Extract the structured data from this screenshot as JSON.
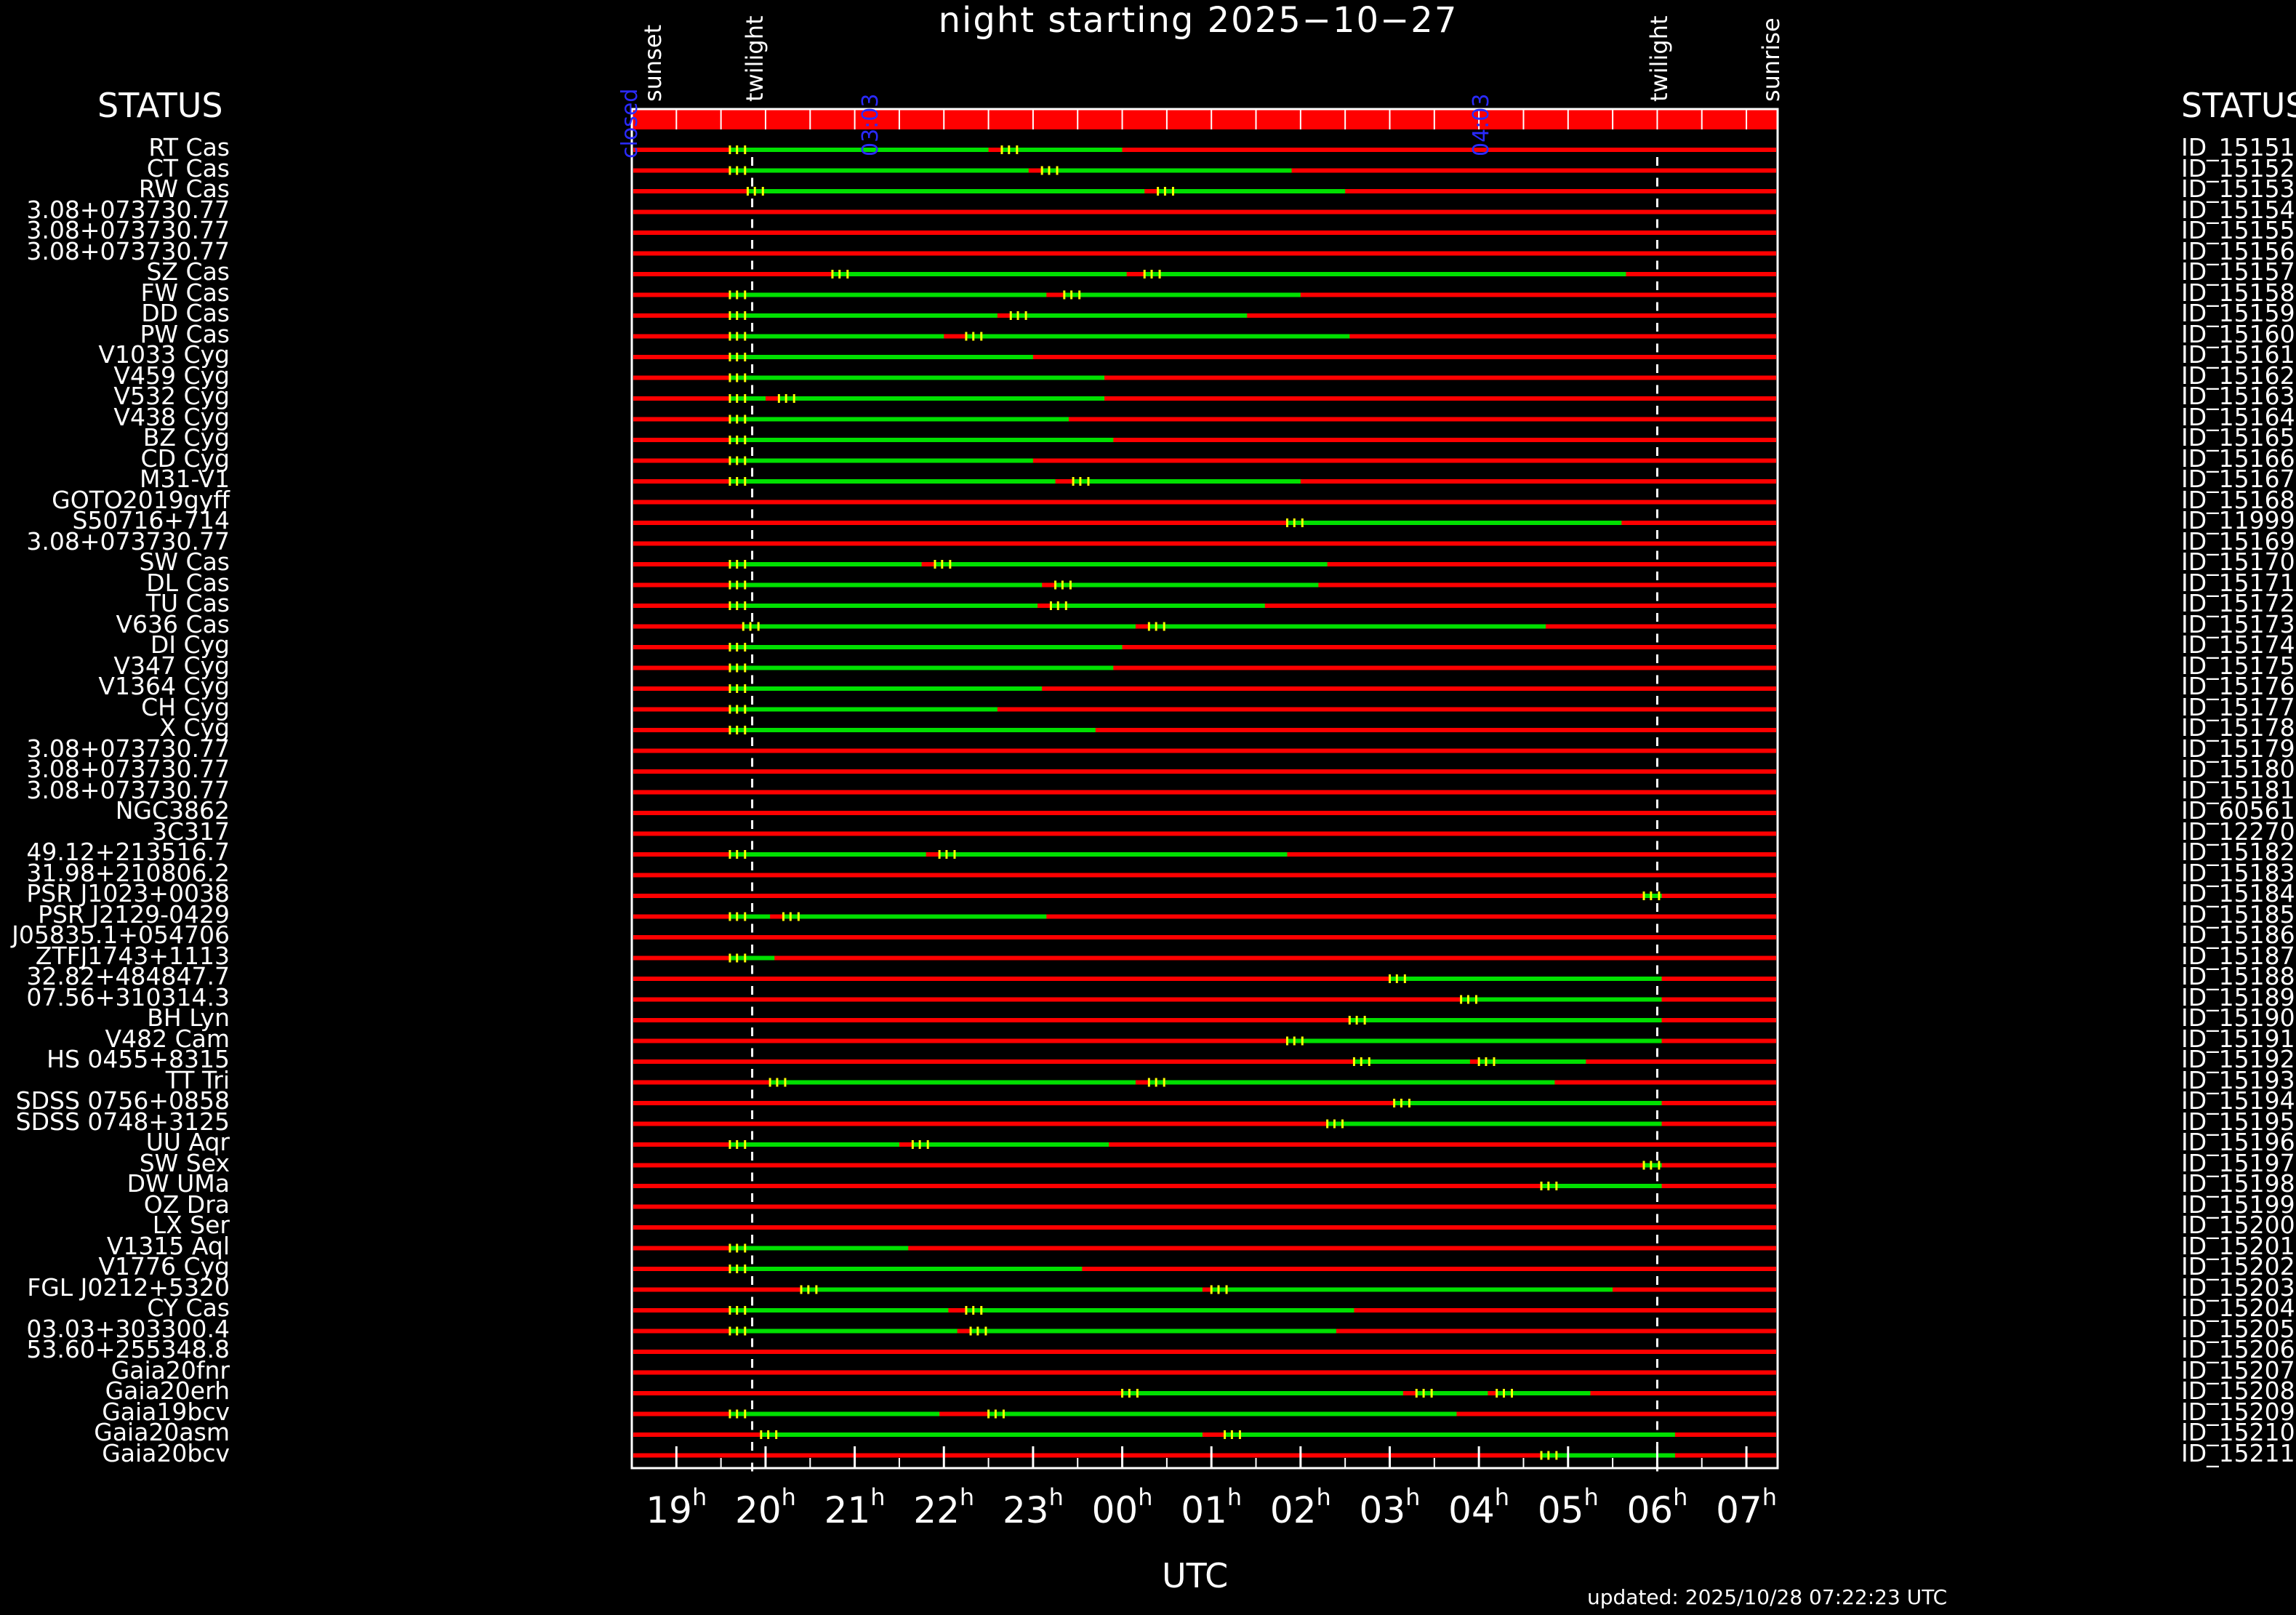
{
  "chart_data": {
    "type": "timeline",
    "title": "night starting 2025−10−27",
    "xlabel": "UTC",
    "status_header": "STATUS",
    "status_header_right": "STATUS",
    "updated": "updated: 2025/10/28 07:22:23 UTC",
    "x_range_hours": [
      18.5,
      31.35
    ],
    "ticks": [
      {
        "h": 19,
        "label": "19"
      },
      {
        "h": 20,
        "label": "20"
      },
      {
        "h": 21,
        "label": "21"
      },
      {
        "h": 22,
        "label": "22"
      },
      {
        "h": 23,
        "label": "23"
      },
      {
        "h": 24,
        "label": "00"
      },
      {
        "h": 25,
        "label": "01"
      },
      {
        "h": 26,
        "label": "02"
      },
      {
        "h": 27,
        "label": "03"
      },
      {
        "h": 28,
        "label": "04"
      },
      {
        "h": 29,
        "label": "05"
      },
      {
        "h": 30,
        "label": "06"
      },
      {
        "h": 31,
        "label": "07"
      }
    ],
    "tick_suffix": "h",
    "events": [
      {
        "label": "sunset",
        "h": 18.5
      },
      {
        "label": "twilight",
        "h": 19.85
      },
      {
        "label": "twilight",
        "h": 30.0
      },
      {
        "label": "sunrise",
        "h": 31.25
      }
    ],
    "blue_markers": [
      {
        "label": "closed",
        "h": 18.45
      },
      {
        "label": "",
        "h": 18.9
      },
      {
        "label": "03:03",
        "h": 21.15
      },
      {
        "label": "04:03",
        "h": 28.0
      }
    ],
    "colors": {
      "bad": "#ff0000",
      "good": "#00e000",
      "marker": "#ffff00",
      "twilight": "#ffffff",
      "blue": "#2a2aff"
    },
    "rows": [
      {
        "name": "RT Cas",
        "id": "ID_15151",
        "segs": [
          [
            19.6,
            22.5
          ],
          [
            22.65,
            24.0
          ]
        ]
      },
      {
        "name": "CT Cas",
        "id": "ID_15152",
        "segs": [
          [
            19.6,
            22.95
          ],
          [
            23.1,
            25.9
          ]
        ]
      },
      {
        "name": "RW Cas",
        "id": "ID_15153",
        "segs": [
          [
            19.8,
            24.25
          ],
          [
            24.4,
            26.5
          ]
        ]
      },
      {
        "name": "3.08+073730.77",
        "id": "ID_15154",
        "segs": []
      },
      {
        "name": "3.08+073730.77",
        "id": "ID_15155",
        "segs": []
      },
      {
        "name": "3.08+073730.77",
        "id": "ID_15156",
        "segs": []
      },
      {
        "name": "SZ Cas",
        "id": "ID_15157",
        "segs": [
          [
            20.75,
            24.05
          ],
          [
            24.25,
            29.65
          ]
        ]
      },
      {
        "name": "FW Cas",
        "id": "ID_15158",
        "segs": [
          [
            19.6,
            23.15
          ],
          [
            23.35,
            26.0
          ]
        ]
      },
      {
        "name": "DD Cas",
        "id": "ID_15159",
        "segs": [
          [
            19.6,
            22.6
          ],
          [
            22.75,
            25.4
          ]
        ]
      },
      {
        "name": "PW Cas",
        "id": "ID_15160",
        "segs": [
          [
            19.6,
            22.0
          ],
          [
            22.25,
            26.55
          ]
        ]
      },
      {
        "name": "V1033 Cyg",
        "id": "ID_15161",
        "segs": [
          [
            19.6,
            23.0
          ]
        ]
      },
      {
        "name": "V459 Cyg",
        "id": "ID_15162",
        "segs": [
          [
            19.6,
            23.8
          ]
        ]
      },
      {
        "name": "V532 Cyg",
        "id": "ID_15163",
        "segs": [
          [
            19.6,
            20.0
          ],
          [
            20.15,
            23.8
          ]
        ]
      },
      {
        "name": "V438 Cyg",
        "id": "ID_15164",
        "segs": [
          [
            19.6,
            23.4
          ]
        ]
      },
      {
        "name": "BZ Cyg",
        "id": "ID_15165",
        "segs": [
          [
            19.6,
            23.9
          ]
        ]
      },
      {
        "name": "CD Cyg",
        "id": "ID_15166",
        "segs": [
          [
            19.6,
            23.0
          ]
        ]
      },
      {
        "name": "M31-V1",
        "id": "ID_15167",
        "segs": [
          [
            19.6,
            23.25
          ],
          [
            23.45,
            26.0
          ]
        ]
      },
      {
        "name": "GOTO2019gyff",
        "id": "ID_15168",
        "segs": []
      },
      {
        "name": "S50716+714",
        "id": "ID_11999",
        "segs": [
          [
            25.85,
            29.6
          ]
        ]
      },
      {
        "name": "3.08+073730.77",
        "id": "ID_15169",
        "segs": []
      },
      {
        "name": "SW Cas",
        "id": "ID_15170",
        "segs": [
          [
            19.6,
            21.75
          ],
          [
            21.9,
            26.3
          ]
        ]
      },
      {
        "name": "DL Cas",
        "id": "ID_15171",
        "segs": [
          [
            19.6,
            23.1
          ],
          [
            23.25,
            26.2
          ]
        ]
      },
      {
        "name": "TU Cas",
        "id": "ID_15172",
        "segs": [
          [
            19.6,
            23.05
          ],
          [
            23.2,
            25.6
          ]
        ]
      },
      {
        "name": "V636 Cas",
        "id": "ID_15173",
        "segs": [
          [
            19.75,
            24.15
          ],
          [
            24.3,
            28.75
          ]
        ]
      },
      {
        "name": "DI Cyg",
        "id": "ID_15174",
        "segs": [
          [
            19.6,
            24.0
          ]
        ]
      },
      {
        "name": "V347 Cyg",
        "id": "ID_15175",
        "segs": [
          [
            19.6,
            23.9
          ]
        ]
      },
      {
        "name": "V1364 Cyg",
        "id": "ID_15176",
        "segs": [
          [
            19.6,
            23.1
          ]
        ]
      },
      {
        "name": "CH Cyg",
        "id": "ID_15177",
        "segs": [
          [
            19.6,
            22.6
          ]
        ]
      },
      {
        "name": "X Cyg",
        "id": "ID_15178",
        "segs": [
          [
            19.6,
            23.7
          ]
        ]
      },
      {
        "name": "3.08+073730.77",
        "id": "ID_15179",
        "segs": []
      },
      {
        "name": "3.08+073730.77",
        "id": "ID_15180",
        "segs": []
      },
      {
        "name": "3.08+073730.77",
        "id": "ID_15181",
        "segs": []
      },
      {
        "name": "NGC3862",
        "id": "ID_60561",
        "segs": []
      },
      {
        "name": "3C317",
        "id": "ID_12270",
        "segs": []
      },
      {
        "name": "49.12+213516.7",
        "id": "ID_15182",
        "segs": [
          [
            19.6,
            21.8
          ],
          [
            21.95,
            25.85
          ]
        ]
      },
      {
        "name": "31.98+210806.2",
        "id": "ID_15183",
        "segs": []
      },
      {
        "name": "PSR J1023+0038",
        "id": "ID_15184",
        "segs": [
          [
            29.85,
            30.05
          ]
        ]
      },
      {
        "name": "PSR J2129-0429",
        "id": "ID_15185",
        "segs": [
          [
            19.6,
            20.05
          ],
          [
            20.2,
            23.15
          ]
        ]
      },
      {
        "name": "J05835.1+054706",
        "id": "ID_15186",
        "segs": []
      },
      {
        "name": "ZTFJ1743+1113",
        "id": "ID_15187",
        "segs": [
          [
            19.6,
            20.1
          ]
        ]
      },
      {
        "name": "32.82+484847.7",
        "id": "ID_15188",
        "segs": [
          [
            27.0,
            30.05
          ]
        ]
      },
      {
        "name": "07.56+310314.3",
        "id": "ID_15189",
        "segs": [
          [
            27.8,
            30.05
          ]
        ]
      },
      {
        "name": "BH Lyn",
        "id": "ID_15190",
        "segs": [
          [
            26.55,
            30.05
          ]
        ]
      },
      {
        "name": "V482 Cam",
        "id": "ID_15191",
        "segs": [
          [
            25.85,
            30.05
          ]
        ]
      },
      {
        "name": "HS 0455+8315",
        "id": "ID_15192",
        "segs": [
          [
            26.6,
            27.9
          ],
          [
            28.0,
            29.2
          ]
        ]
      },
      {
        "name": "TT Tri",
        "id": "ID_15193",
        "segs": [
          [
            20.05,
            24.15
          ],
          [
            24.3,
            28.85
          ]
        ]
      },
      {
        "name": "SDSS 0756+0858",
        "id": "ID_15194",
        "segs": [
          [
            27.05,
            30.05
          ]
        ]
      },
      {
        "name": "SDSS 0748+3125",
        "id": "ID_15195",
        "segs": [
          [
            26.3,
            30.05
          ]
        ]
      },
      {
        "name": "UU Aqr",
        "id": "ID_15196",
        "segs": [
          [
            19.6,
            21.5
          ],
          [
            21.65,
            23.85
          ]
        ]
      },
      {
        "name": "SW Sex",
        "id": "ID_15197",
        "segs": [
          [
            29.85,
            30.05
          ]
        ]
      },
      {
        "name": "DW UMa",
        "id": "ID_15198",
        "segs": [
          [
            28.7,
            30.05
          ]
        ]
      },
      {
        "name": "OZ Dra",
        "id": "ID_15199",
        "segs": []
      },
      {
        "name": "LX Ser",
        "id": "ID_15200",
        "segs": []
      },
      {
        "name": "V1315 Aql",
        "id": "ID_15201",
        "segs": [
          [
            19.6,
            21.6
          ]
        ]
      },
      {
        "name": "V1776 Cyg",
        "id": "ID_15202",
        "segs": [
          [
            19.6,
            23.55
          ]
        ]
      },
      {
        "name": "FGL J0212+5320",
        "id": "ID_15203",
        "segs": [
          [
            20.4,
            24.9
          ],
          [
            25.0,
            29.5
          ]
        ]
      },
      {
        "name": "CY Cas",
        "id": "ID_15204",
        "segs": [
          [
            19.6,
            22.05
          ],
          [
            22.25,
            26.6
          ]
        ]
      },
      {
        "name": "03.03+303300.4",
        "id": "ID_15205",
        "segs": [
          [
            19.6,
            22.15
          ],
          [
            22.3,
            26.4
          ]
        ]
      },
      {
        "name": "53.60+255348.8",
        "id": "ID_15206",
        "segs": []
      },
      {
        "name": "Gaia20fnr",
        "id": "ID_15207",
        "segs": []
      },
      {
        "name": "Gaia20erh",
        "id": "ID_15208",
        "segs": [
          [
            24.0,
            27.15
          ],
          [
            27.3,
            28.1
          ],
          [
            28.2,
            29.25
          ]
        ]
      },
      {
        "name": "Gaia19bcv",
        "id": "ID_15209",
        "segs": [
          [
            19.6,
            21.95
          ],
          [
            22.5,
            27.75
          ]
        ]
      },
      {
        "name": "Gaia20asm",
        "id": "ID_15210",
        "segs": [
          [
            19.95,
            24.9
          ],
          [
            25.15,
            30.2
          ]
        ]
      },
      {
        "name": "Gaia20bcv",
        "id": "ID_15211",
        "segs": [
          [
            28.7,
            30.2
          ]
        ]
      }
    ]
  }
}
